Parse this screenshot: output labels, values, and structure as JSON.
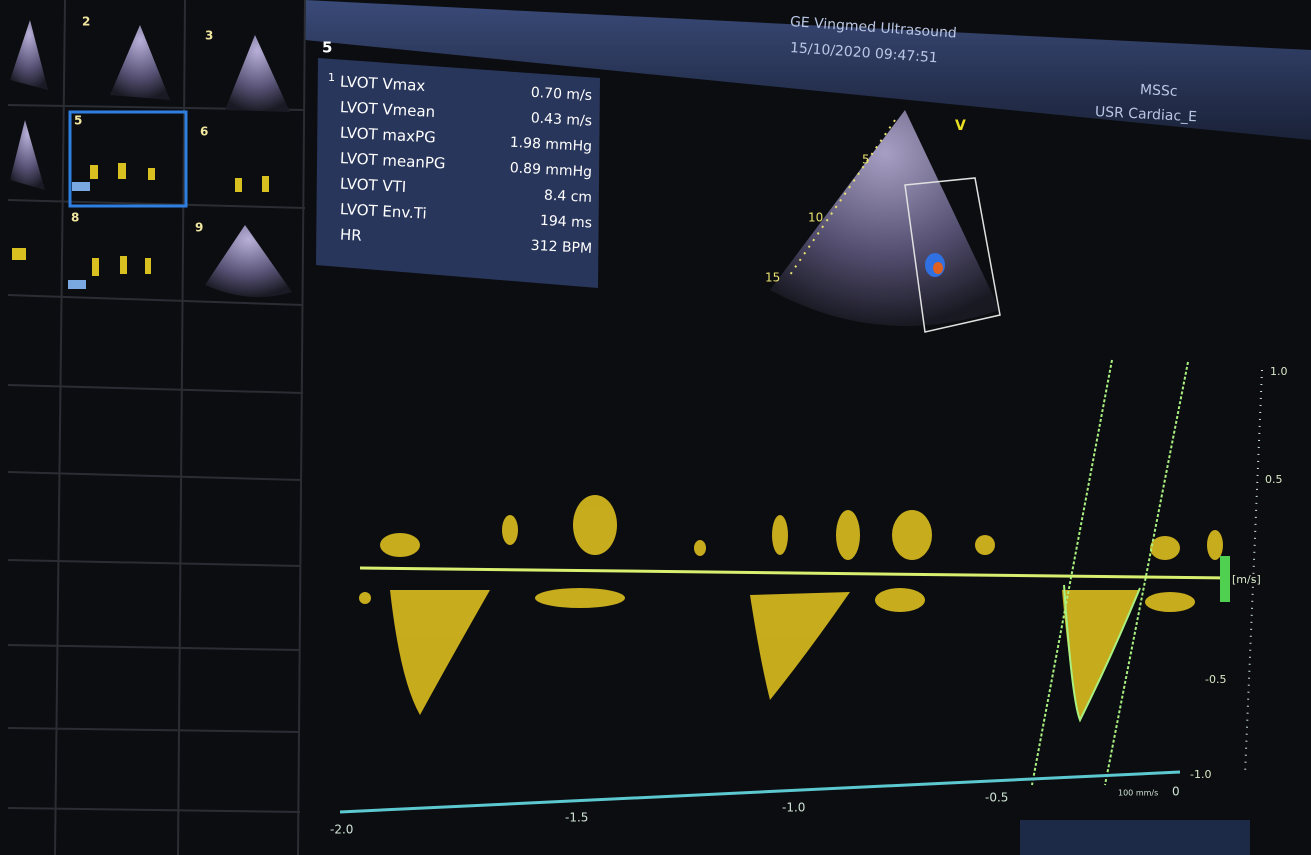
{
  "header": {
    "device": "GE Vingmed Ultrasound",
    "datetime": "15/10/2020 09:47:51",
    "user": "MSSc",
    "preset": "USR Cardiac_E"
  },
  "thumbnails": [
    "2",
    "3",
    "5",
    "6",
    "8",
    "9"
  ],
  "active_image": "5",
  "measurements": {
    "index": "1",
    "rows": [
      [
        "LVOT Vmax",
        "0.70 m/s"
      ],
      [
        "LVOT Vmean",
        "0.43 m/s"
      ],
      [
        "LVOT maxPG",
        "1.98 mmHg"
      ],
      [
        "LVOT meanPG",
        "0.89 mmHg"
      ],
      [
        "LVOT VTI",
        "8.4 cm"
      ],
      [
        "LVOT Env.Ti",
        "194 ms"
      ],
      [
        "HR",
        "312 BPM"
      ]
    ]
  },
  "depth_labels": [
    "5",
    "10",
    "15"
  ],
  "mode_label": "V",
  "velocity_axis": {
    "labels": [
      "1.0",
      "0.5",
      "-0.5",
      "-1.0"
    ],
    "unit": "[m/s]"
  },
  "time_axis": {
    "labels": [
      "-2.0",
      "-1.5",
      "-1.0",
      "-0.5",
      "0"
    ],
    "sweep": "100 mm/s"
  }
}
